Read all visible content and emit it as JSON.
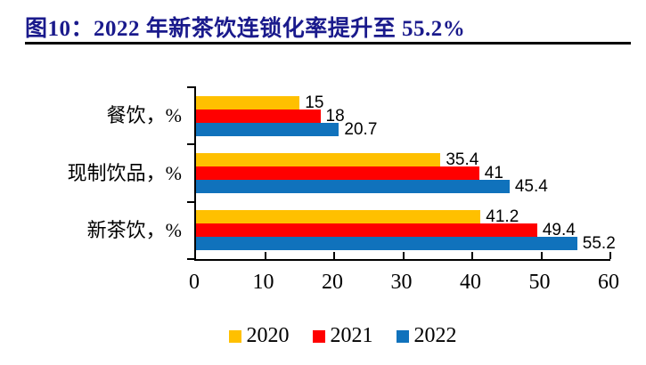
{
  "title": {
    "text": "图10：2022 年新茶饮连锁化率提升至 55.2%"
  },
  "colors": {
    "title_text": "#1A1A8C",
    "title_rule": "#000000",
    "axis": "#000000",
    "series_2020": "#FFC000",
    "series_2021": "#FF0000",
    "series_2022": "#1072BC"
  },
  "chart_data": {
    "type": "bar",
    "orientation": "horizontal",
    "title": "图10：2022 年新茶饮连锁化率提升至 55.2%",
    "categories": [
      "餐饮，%",
      "现制饮品，%",
      "新茶饮，%"
    ],
    "series": [
      {
        "name": "2020",
        "color": "#FFC000",
        "values": [
          15,
          35.4,
          41.2
        ],
        "labels": [
          "15",
          "35.4",
          "41.2"
        ]
      },
      {
        "name": "2021",
        "color": "#FF0000",
        "values": [
          18,
          41,
          49.4
        ],
        "labels": [
          "18",
          "41",
          "49.4"
        ]
      },
      {
        "name": "2022",
        "color": "#1072BC",
        "values": [
          20.7,
          45.4,
          55.2
        ],
        "labels": [
          "20.7",
          "45.4",
          "55.2"
        ]
      }
    ],
    "xlabel": "",
    "ylabel": "",
    "xlim": [
      0,
      60
    ],
    "xticks": [
      0,
      10,
      20,
      30,
      40,
      50,
      60
    ],
    "grid": false,
    "legend_position": "bottom",
    "legend": [
      "2020",
      "2021",
      "2022"
    ]
  }
}
